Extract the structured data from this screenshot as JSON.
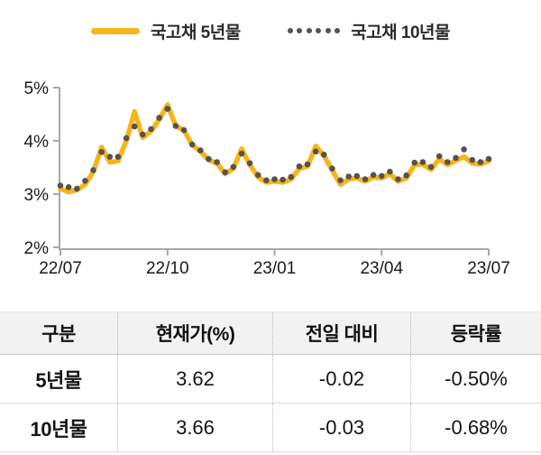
{
  "legend": {
    "items": [
      {
        "label": "국고채 5년물",
        "marker": "line",
        "color": "#F7B51A"
      },
      {
        "label": "국고채 10년물",
        "marker": "dots",
        "color": "#57524E"
      }
    ]
  },
  "chart_data": {
    "type": "line",
    "x_tick_labels": [
      "22/07",
      "22/10",
      "23/01",
      "23/04",
      "23/07"
    ],
    "y_tick_labels": [
      "5%",
      "4%",
      "3%",
      "2%"
    ],
    "y_tick_values": [
      5,
      4,
      3,
      2
    ],
    "ylim": [
      2,
      5
    ],
    "x_range": [
      "2022-07",
      "2023-07"
    ],
    "grid": false,
    "legend_position": "top",
    "series": [
      {
        "name": "국고채 5년물",
        "style": "solid-line",
        "color": "#F7B51A",
        "values": [
          3.1,
          3.04,
          3.08,
          3.18,
          3.42,
          3.88,
          3.6,
          3.62,
          4.0,
          4.55,
          4.06,
          4.18,
          4.4,
          4.68,
          4.28,
          4.2,
          3.92,
          3.8,
          3.64,
          3.58,
          3.38,
          3.48,
          3.85,
          3.55,
          3.32,
          3.22,
          3.24,
          3.22,
          3.28,
          3.48,
          3.52,
          3.9,
          3.72,
          3.45,
          3.18,
          3.28,
          3.3,
          3.24,
          3.32,
          3.3,
          3.38,
          3.24,
          3.3,
          3.55,
          3.56,
          3.46,
          3.66,
          3.55,
          3.63,
          3.7,
          3.58,
          3.56,
          3.62
        ]
      },
      {
        "name": "국고채 10년물",
        "style": "dotted",
        "color": "#57524E",
        "values": [
          3.16,
          3.13,
          3.1,
          3.25,
          3.45,
          3.79,
          3.7,
          3.7,
          4.05,
          4.27,
          4.12,
          4.22,
          4.43,
          4.6,
          4.28,
          4.2,
          3.93,
          3.82,
          3.66,
          3.6,
          3.41,
          3.51,
          3.76,
          3.58,
          3.36,
          3.26,
          3.28,
          3.27,
          3.32,
          3.52,
          3.56,
          3.8,
          3.74,
          3.48,
          3.26,
          3.33,
          3.34,
          3.28,
          3.36,
          3.34,
          3.42,
          3.28,
          3.35,
          3.59,
          3.6,
          3.51,
          3.71,
          3.6,
          3.68,
          3.84,
          3.64,
          3.6,
          3.66
        ]
      }
    ]
  },
  "table": {
    "headers": [
      "구분",
      "현재가(%)",
      "전일 대비",
      "등락률"
    ],
    "rows": [
      [
        "5년물",
        "3.62",
        "-0.02",
        "-0.50%"
      ],
      [
        "10년물",
        "3.66",
        "-0.03",
        "-0.68%"
      ]
    ]
  },
  "colors": {
    "accent_yellow": "#F7B51A",
    "dot_gray": "#57524E",
    "axis_gray": "#a8a8a8",
    "axis_text": "#1a1a1a",
    "header_bg": "#f2f2f2"
  }
}
